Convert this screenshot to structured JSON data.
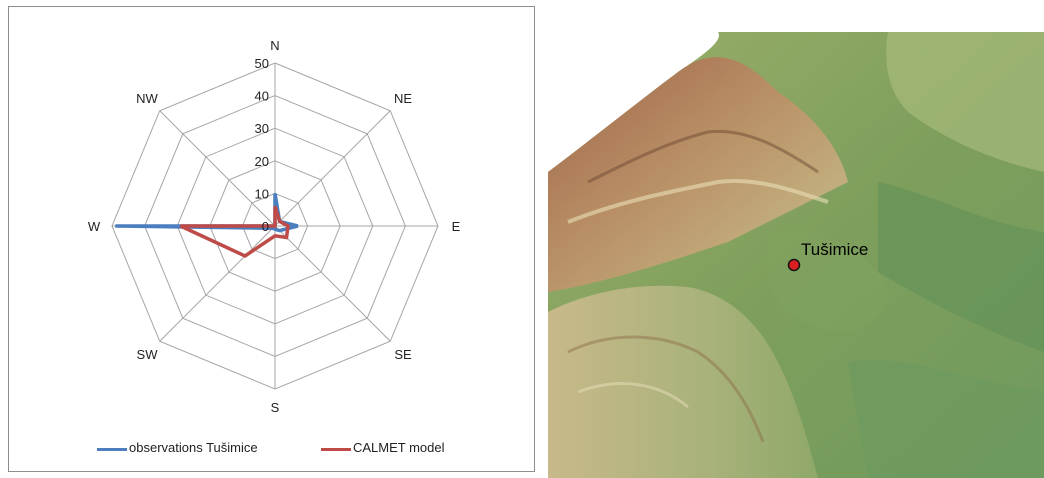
{
  "chart_data": {
    "type": "radar",
    "axes": [
      "N",
      "NE",
      "E",
      "SE",
      "S",
      "SW",
      "W",
      "NW"
    ],
    "ticks": [
      0,
      10,
      20,
      30,
      40,
      50
    ],
    "rlim": [
      0,
      50
    ],
    "grid": true,
    "legend_position": "bottom",
    "series": [
      {
        "name": "observations Tušimice",
        "color": "#4a7ebf",
        "values": [
          10,
          2,
          7,
          2,
          1,
          1,
          49,
          0
        ]
      },
      {
        "name": "CALMET model",
        "color": "#be4b48",
        "values": [
          6,
          2,
          4,
          5,
          3,
          13,
          29,
          0
        ]
      }
    ]
  },
  "map": {
    "marker_label": "Tušimice",
    "marker_color": "#d91f1f"
  }
}
